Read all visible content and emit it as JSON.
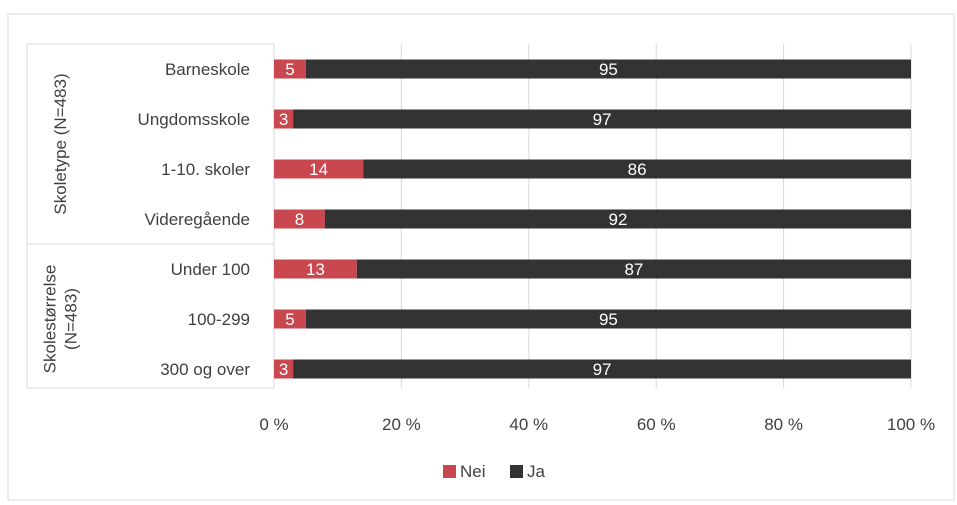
{
  "chart_data": {
    "type": "bar",
    "orientation": "horizontal",
    "stacked": "percent",
    "groups": [
      {
        "label": "Skoletype (N=483)",
        "categories": [
          "Barneskole",
          "Ungdomsskole",
          "1-10. skoler",
          "Videregående"
        ]
      },
      {
        "label": "Skolestørrelse (N=483)",
        "categories": [
          "Under 100",
          "100-299",
          "300 og over"
        ]
      }
    ],
    "categories": [
      "Barneskole",
      "Ungdomsskole",
      "1-10. skoler",
      "Videregående",
      "Under 100",
      "100-299",
      "300 og over"
    ],
    "series": [
      {
        "name": "Nei",
        "color": "#c9474f",
        "values": [
          5,
          3,
          14,
          8,
          13,
          5,
          3
        ]
      },
      {
        "name": "Ja",
        "color": "#333333",
        "values": [
          95,
          97,
          86,
          92,
          87,
          95,
          97
        ]
      }
    ],
    "xlim": [
      0,
      100
    ],
    "xticks": [
      "0 %",
      "20 %",
      "40 %",
      "60 %",
      "80 %",
      "100 %"
    ],
    "grid": true,
    "legend": "bottom",
    "data_labels": true
  }
}
